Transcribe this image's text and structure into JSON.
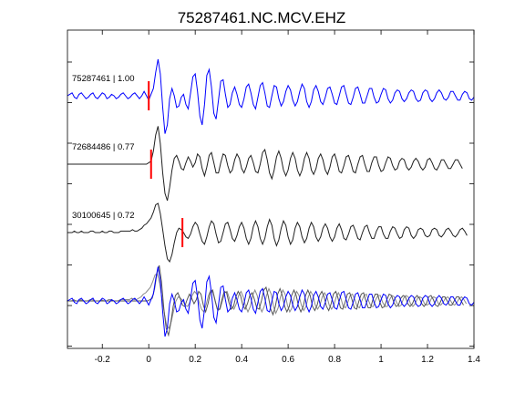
{
  "chart_data": {
    "type": "line",
    "title": "75287461.NC.MCV.EHZ",
    "xlabel": "",
    "ylabel": "",
    "xlim": [
      -0.35,
      1.4
    ],
    "x_ticks": [
      -0.2,
      0,
      0.2,
      0.4,
      0.6,
      0.8,
      1.0,
      1.2,
      1.4
    ],
    "x_tick_labels": [
      "-0.2",
      "0",
      "0.2",
      "0.4",
      "0.6",
      "0.8",
      "1",
      "1.2",
      "1.4"
    ],
    "y_axis_tick_labels": "none",
    "grid": false,
    "legend": "none",
    "sample_interval_s": 0.01,
    "traces": [
      {
        "label": "75287461 | 1.00",
        "event_id": "75287461",
        "correlation": 1.0,
        "color": "#0000ff",
        "pick_time": 0.0,
        "t0": -0.35,
        "values": [
          0.0,
          0.1,
          0.2,
          -0.1,
          -0.2,
          0.1,
          0.2,
          0.0,
          -0.2,
          -0.1,
          0.1,
          0.2,
          -0.1,
          -0.2,
          0.0,
          0.2,
          0.1,
          -0.2,
          -0.1,
          0.1,
          0.0,
          -0.2,
          -0.1,
          0.1,
          0.2,
          0.0,
          -0.2,
          -0.1,
          0.1,
          0.2,
          0.0,
          -0.2,
          0.0,
          0.3,
          0.0,
          -0.3,
          0.1,
          0.5,
          1.6,
          2.5,
          1.5,
          -0.8,
          -2.6,
          -2.0,
          -0.2,
          0.5,
          0.0,
          -0.8,
          -0.7,
          -0.1,
          0.1,
          -0.6,
          -0.9,
          0.2,
          1.3,
          1.5,
          0.3,
          -1.4,
          -2.0,
          -0.6,
          1.4,
          1.8,
          0.6,
          -1.2,
          -1.6,
          -0.3,
          1.0,
          1.1,
          0.1,
          -0.8,
          -0.6,
          0.2,
          0.6,
          0.1,
          -0.6,
          -0.8,
          -0.2,
          0.6,
          0.8,
          0.2,
          -0.6,
          -0.9,
          -0.1,
          0.7,
          0.9,
          0.2,
          -0.7,
          -0.8,
          0.0,
          0.7,
          0.6,
          -0.2,
          -0.7,
          -0.4,
          0.3,
          0.7,
          0.4,
          -0.3,
          -0.7,
          -0.4,
          0.3,
          0.8,
          0.5,
          -0.4,
          -0.8,
          -0.4,
          0.4,
          0.7,
          0.3,
          -0.4,
          -0.6,
          -0.1,
          0.5,
          0.6,
          0.1,
          -0.5,
          -0.6,
          0.0,
          0.6,
          0.7,
          0.1,
          -0.5,
          -0.6,
          -0.1,
          0.5,
          0.6,
          0.1,
          -0.5,
          -0.5,
          0.0,
          0.5,
          0.5,
          -0.1,
          -0.5,
          -0.4,
          0.1,
          0.5,
          0.4,
          -0.2,
          -0.5,
          -0.3,
          0.2,
          0.4,
          0.3,
          -0.2,
          -0.4,
          -0.2,
          0.2,
          0.4,
          0.3,
          -0.2,
          -0.4,
          -0.3,
          0.2,
          0.4,
          0.3,
          -0.2,
          -0.4,
          -0.2,
          0.2,
          0.4,
          0.2,
          -0.2,
          -0.3,
          -0.1,
          0.3,
          0.3,
          0.0,
          -0.3,
          -0.3,
          0.1,
          0.3,
          0.2,
          -0.2,
          -0.3,
          -0.1,
          0.2
        ]
      },
      {
        "label": "72684486 | 0.77",
        "event_id": "72684486",
        "correlation": 0.77,
        "color": "#202020",
        "pick_time": 0.01,
        "t0": -0.35,
        "values": [
          0.0,
          0.0,
          0.0,
          0.0,
          0.0,
          0.0,
          0.0,
          0.0,
          0.0,
          0.0,
          0.0,
          0.0,
          0.0,
          0.0,
          0.0,
          0.0,
          0.0,
          0.0,
          0.0,
          0.0,
          0.0,
          0.0,
          0.0,
          0.0,
          0.0,
          0.0,
          0.0,
          0.0,
          0.0,
          0.0,
          0.0,
          0.0,
          0.0,
          0.0,
          0.0,
          0.1,
          0.2,
          0.9,
          2.0,
          2.6,
          1.4,
          -0.6,
          -2.0,
          -2.5,
          -1.6,
          -0.4,
          0.4,
          0.6,
          0.2,
          -0.3,
          -0.4,
          0.1,
          0.5,
          0.2,
          -0.2,
          0.1,
          0.7,
          0.5,
          -0.3,
          -0.8,
          -0.2,
          0.6,
          0.8,
          0.1,
          -0.6,
          -0.6,
          0.1,
          0.7,
          0.6,
          -0.1,
          -0.6,
          -0.4,
          0.3,
          0.7,
          0.4,
          -0.3,
          -0.6,
          -0.2,
          0.4,
          0.6,
          0.1,
          -0.5,
          -0.6,
          0.0,
          0.8,
          1.0,
          0.3,
          -0.6,
          -1.0,
          -0.4,
          0.5,
          0.9,
          0.4,
          -0.4,
          -0.8,
          -0.4,
          0.4,
          0.8,
          0.4,
          -0.4,
          -0.8,
          -0.4,
          0.4,
          0.8,
          0.4,
          -0.4,
          -0.7,
          -0.3,
          0.4,
          0.7,
          0.3,
          -0.4,
          -0.7,
          -0.2,
          0.5,
          0.7,
          0.2,
          -0.5,
          -0.6,
          -0.1,
          0.5,
          0.6,
          0.1,
          -0.5,
          -0.6,
          0.0,
          0.5,
          0.6,
          0.0,
          -0.5,
          -0.5,
          0.1,
          0.5,
          0.5,
          -0.1,
          -0.5,
          -0.4,
          0.1,
          0.5,
          0.4,
          -0.1,
          -0.4,
          -0.3,
          0.2,
          0.4,
          0.3,
          -0.2,
          -0.4,
          -0.2,
          0.2,
          0.4,
          0.2,
          -0.2,
          -0.4,
          -0.2,
          0.3,
          0.4,
          0.1,
          -0.3,
          -0.4,
          -0.1,
          0.3,
          0.3,
          0.0,
          -0.3,
          -0.3,
          0.0,
          0.3,
          0.3,
          0.0,
          -0.3
        ]
      },
      {
        "label": "30100645 | 0.72",
        "event_id": "30100645",
        "correlation": 0.72,
        "color": "#202020",
        "pick_time": 0.145,
        "t0": -0.35,
        "values": [
          0.0,
          0.0,
          0.0,
          0.1,
          0.0,
          0.0,
          0.1,
          0.0,
          0.0,
          0.0,
          0.1,
          0.1,
          0.0,
          0.0,
          0.0,
          0.1,
          0.0,
          0.0,
          0.1,
          0.1,
          0.0,
          0.0,
          0.0,
          0.1,
          0.1,
          0.1,
          0.1,
          0.1,
          0.2,
          0.1,
          0.1,
          0.2,
          0.3,
          0.5,
          0.6,
          0.8,
          1.0,
          1.4,
          1.9,
          2.0,
          1.3,
          0.2,
          -0.9,
          -1.8,
          -2.0,
          -1.5,
          -0.7,
          0.0,
          0.3,
          0.2,
          0.0,
          -0.3,
          -0.4,
          -0.1,
          0.4,
          0.7,
          0.5,
          -0.1,
          -0.6,
          -0.8,
          -0.3,
          0.4,
          0.8,
          0.6,
          -0.1,
          -0.7,
          -0.6,
          0.0,
          0.6,
          0.7,
          0.2,
          -0.4,
          -0.6,
          -0.2,
          0.4,
          0.7,
          0.3,
          -0.4,
          -0.8,
          -0.4,
          0.4,
          0.8,
          0.4,
          -0.4,
          -0.8,
          -0.4,
          0.4,
          0.9,
          0.5,
          -0.4,
          -0.9,
          -0.5,
          0.3,
          0.8,
          0.5,
          -0.3,
          -0.8,
          -0.5,
          0.3,
          0.7,
          0.4,
          -0.3,
          -0.7,
          -0.4,
          0.3,
          0.7,
          0.4,
          -0.3,
          -0.6,
          -0.3,
          0.3,
          0.6,
          0.3,
          -0.3,
          -0.6,
          -0.3,
          0.3,
          0.6,
          0.2,
          -0.4,
          -0.5,
          -0.1,
          0.4,
          0.5,
          0.1,
          -0.4,
          -0.5,
          0.0,
          0.4,
          0.5,
          0.0,
          -0.4,
          -0.4,
          0.1,
          0.4,
          0.4,
          -0.1,
          -0.4,
          -0.4,
          0.1,
          0.4,
          0.3,
          -0.1,
          -0.4,
          -0.3,
          0.2,
          0.4,
          0.3,
          -0.2,
          -0.4,
          -0.2,
          0.2,
          0.3,
          0.2,
          -0.2,
          -0.3,
          -0.2,
          0.2,
          0.3,
          0.2,
          -0.2,
          -0.3,
          -0.1,
          0.2,
          0.3,
          0.1,
          -0.2,
          -0.3,
          -0.1,
          0.2,
          0.3,
          0.1,
          -0.2
        ]
      }
    ],
    "overlay": {
      "description_visible": false,
      "series_colors": [
        "#0000ff",
        "#555555",
        "#888888"
      ]
    }
  },
  "colors": {
    "axes": "#000000",
    "pick_marker": "#ff0000",
    "primary_trace": "#0000ff",
    "other_traces": "#202020",
    "overlay_gray_dark": "#555555",
    "overlay_gray_light": "#8a8a8a"
  }
}
